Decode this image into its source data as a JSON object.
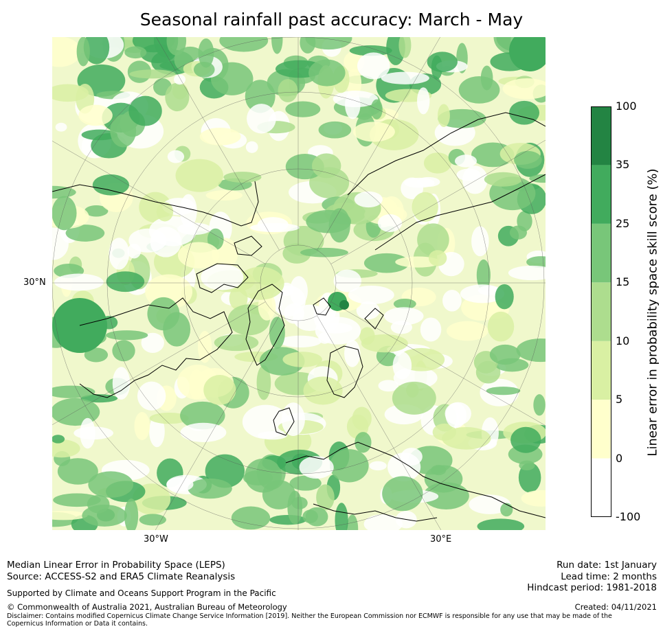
{
  "title": "Seasonal rainfall past accuracy: March - May",
  "map": {
    "lat_labels": [
      "30°N"
    ],
    "lon_labels": [
      "30°W",
      "30°E"
    ],
    "colors": {
      "white": "#ffffff",
      "pale_yellow": "#ffffcc",
      "light_yellow_green": "#d9f0a3",
      "light_green": "#addd8e",
      "mid_green": "#78c679",
      "green": "#41ab5d",
      "dark_green": "#238443",
      "coast": "#000000",
      "grid": "#555555"
    }
  },
  "colorbar": {
    "title": "Linear error in probability space skill score (%)",
    "ticks": [
      "-100",
      "0",
      "5",
      "10",
      "15",
      "25",
      "35",
      "100"
    ],
    "colors": [
      "#ffffff",
      "#ffffcc",
      "#d9f0a3",
      "#addd8e",
      "#78c679",
      "#41ab5d",
      "#238443"
    ]
  },
  "footer": {
    "left_line1": "Median Linear Error in Probability Space (LEPS)",
    "left_line2": "Source: ACCESS-S2 and ERA5 Climate Reanalysis",
    "support": "Supported by Climate and Oceans Support Program in the Pacific",
    "copyright": "© Commonwealth of Australia 2021, Australian Bureau of Meteorology",
    "run_date": "Run date: 1st January",
    "lead_time": "Lead time: 2 months",
    "hindcast": "Hindcast period: 1981-2018",
    "created": "Created: 04/11/2021",
    "disclaimer": "Disclaimer: Contains modified Copernicus Climate Change Service Information [2019]. Neither the European Commission nor ECMWF is responsible for any use that may be made of the Copernicus Information or Data it contains."
  }
}
